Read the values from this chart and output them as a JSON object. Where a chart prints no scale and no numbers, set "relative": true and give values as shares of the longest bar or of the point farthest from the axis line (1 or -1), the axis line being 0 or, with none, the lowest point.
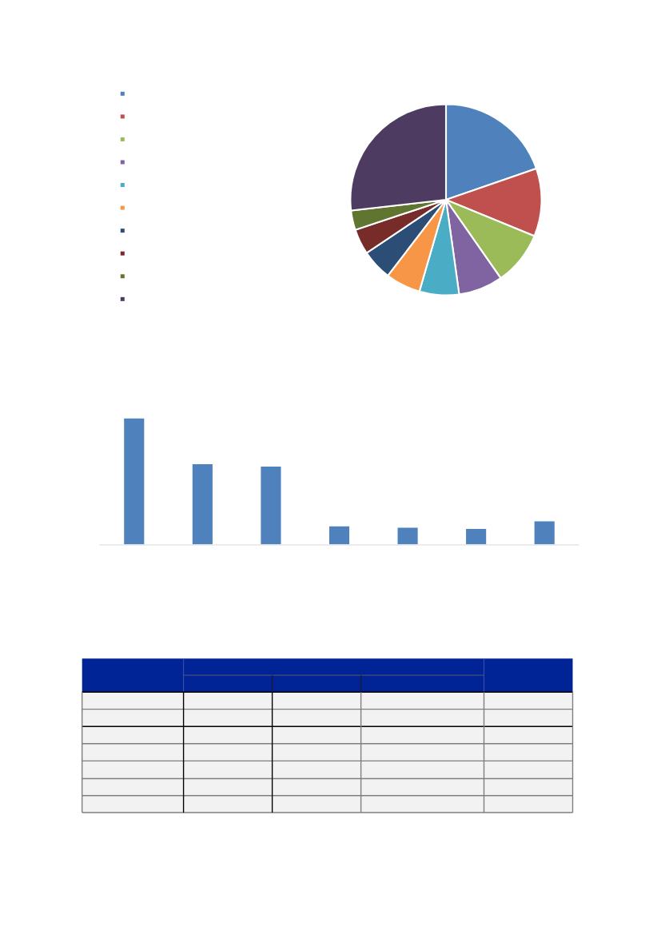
{
  "chart_data": [
    {
      "type": "pie",
      "categories": [
        null,
        null,
        null,
        null,
        null,
        null,
        null,
        null,
        null,
        null
      ],
      "values": [
        19.7,
        11.5,
        9.1,
        7.5,
        6.7,
        5.9,
        5.2,
        4.3,
        3.3,
        26.8
      ],
      "colors": [
        "#4f81bd",
        "#c0504d",
        "#9bbb59",
        "#8064a2",
        "#4bacc6",
        "#f79646",
        "#2c4d75",
        "#772c2a",
        "#5f7530",
        "#4d3b62"
      ]
    },
    {
      "type": "bar",
      "categories": [
        null,
        null,
        null,
        null,
        null,
        null,
        null
      ],
      "values": [
        1,
        0.64,
        0.62,
        0.15,
        0.14,
        0.13,
        0.19
      ],
      "color": "#4f81bd",
      "relative": true
    }
  ]
}
